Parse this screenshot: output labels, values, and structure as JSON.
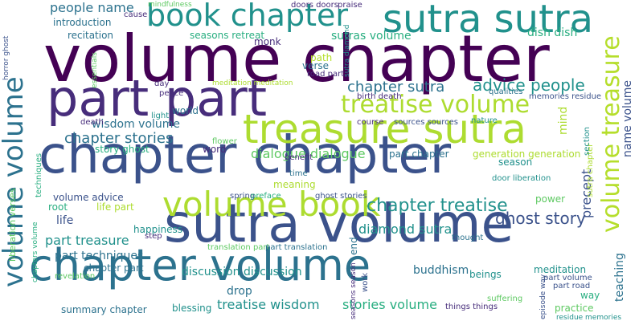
{
  "words": {
    "volume_chapter": "volume chapter",
    "part_part": "part part",
    "chapter_chapter": "chapter chapter",
    "chapter_volume": "chapter volume",
    "sutra_volume": "sutra volume",
    "sutra_sutra": "sutra sutra",
    "book_chapter": "book chapter",
    "treasure_sutra": "treasure sutra",
    "volume_book": "volume book",
    "treatise_volume": "treatise volume",
    "chapter_treatise": "chapter treatise",
    "dialogue_dialogue": "dialogue dialogue",
    "advice_people": "advice people",
    "diamond_sutra": "diamond sutra",
    "ghost_story": "ghost story",
    "chapter_sutra": "chapter sutra",
    "chapter_stories": "chapter stories",
    "people_name": "people name",
    "treatise_wisdom": "treatise wisdom",
    "stories_volume": "stories volume",
    "discussion_discussion": "discussion discussion",
    "generation_generation": "generation generation",
    "wisdom_volume": "wisdom volume",
    "part_treasure": "part treasure",
    "part_techniques": "part techniques",
    "summary_chapter": "summary chapter",
    "story_ghost": "story ghost",
    "life_part": "life part",
    "volume_advice": "volume advice",
    "chapter_part": "chapter part",
    "happiness": "happiness",
    "recitation": "recitation",
    "introduction": "introduction",
    "seasons_retreat": "seasons retreat",
    "sutras_volume": "sutras volume",
    "dish_dish": "dish dish",
    "monk": "monk",
    "path": "path",
    "verse": "verse",
    "road_part": "road part",
    "memories_residue": "memories residue",
    "part_chapter": "part chapter",
    "season": "season",
    "door_liberation": "door liberation",
    "power": "power",
    "meditation": "meditation",
    "part_volume": "part volume",
    "part_road": "part road",
    "drop": "drop",
    "blessing": "blessing",
    "buddhism": "buddhism",
    "way": "way",
    "practice": "practice",
    "residue_memories": "residue memories",
    "things_things": "things things",
    "beings": "beings",
    "suffering": "suffering",
    "thought": "thought",
    "word": "word",
    "flower": "flower",
    "meaning": "meaning",
    "spring": "spring",
    "preface": "preface",
    "time": "time",
    "benefit": "benefit",
    "ghost_stories": "ghost stories",
    "translation_part": "translation part",
    "part_translation": "part translation",
    "death": "death",
    "light": "light",
    "world": "world",
    "qualities": "qualities",
    "nature": "nature",
    "sources_sources": "sources sources",
    "course": "course",
    "birth_death": "birth death",
    "root": "root",
    "life": "life",
    "revelation": "revelation",
    "step": "step",
    "peace": "peace",
    "day": "day",
    "meditation_meditation": "meditation meditation",
    "doors_doors": "doors doors",
    "praise": "praise",
    "cause": "cause",
    "mindfulness": "mindfulness",
    "volume_volume": "volume volume",
    "volume_treasure": "volume treasure",
    "precept": "precept",
    "name_volume": "name volume",
    "teaching": "teaching",
    "mind": "mind",
    "sutra_chapter": "sutra chapter",
    "section": "section",
    "liberation_verses": "liberation verses",
    "horror_ghost": "horror ghost",
    "techniques": "techniques",
    "essentials": "essentials",
    "chapters_volume": "chapters volume",
    "work": "work",
    "end": "end",
    "seasons_season": "seasons season",
    "sutra_diamond": "sutra diamond",
    "episode_way": "episode way"
  }
}
